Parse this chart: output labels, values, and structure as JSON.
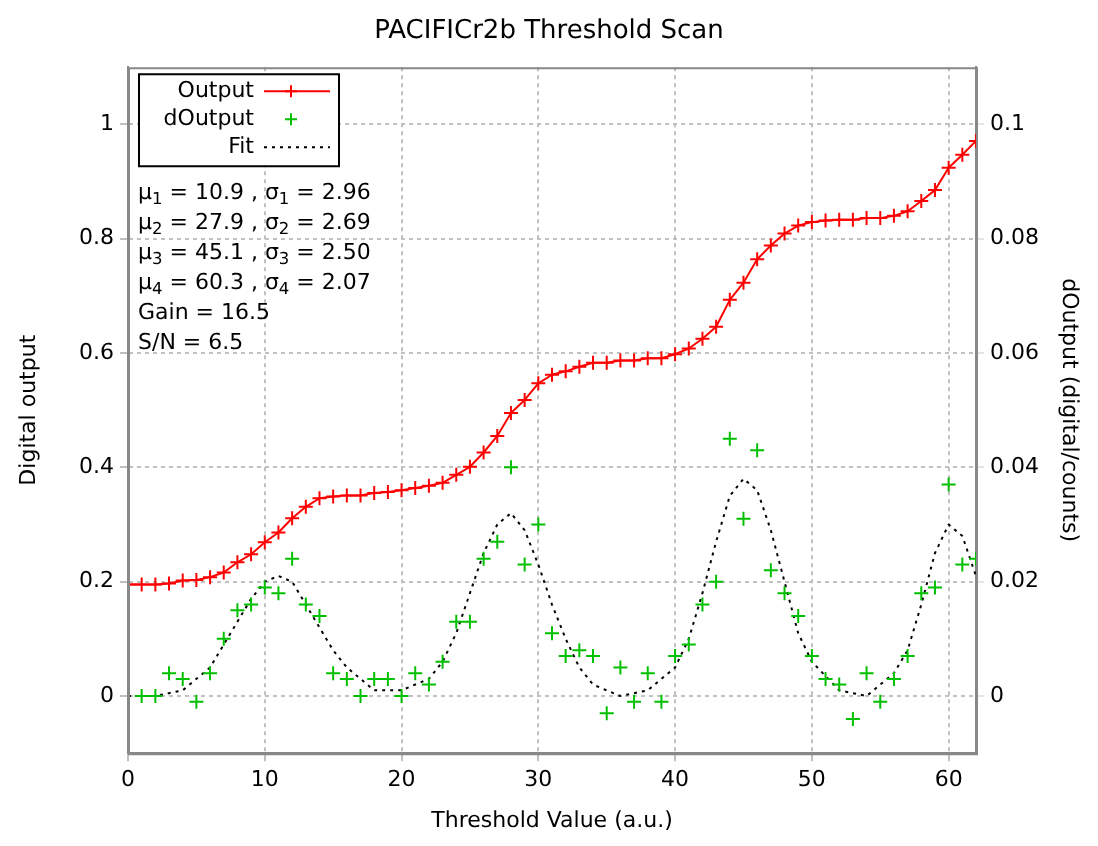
{
  "chart_data": {
    "type": "line",
    "title": "PACIFICr2b Threshold Scan",
    "xlabel": "Threshold Value (a.u.)",
    "ylabel": "Digital output",
    "y2label": "dOutput (digital/counts)",
    "xlim": [
      0,
      62
    ],
    "xticks": [
      0,
      10,
      20,
      30,
      40,
      50,
      60
    ],
    "ylim": [
      -0.1,
      1.1
    ],
    "yticks": [
      0,
      0.2,
      0.4,
      0.6,
      0.8,
      1
    ],
    "y2lim": [
      -0.01,
      0.11
    ],
    "y2ticks": [
      0,
      0.02,
      0.04,
      0.06,
      0.08,
      0.1
    ],
    "grid": true,
    "legend": "top left",
    "annotations": [
      "μ$_{1}$ = 10.9 , σ$_{1}$ = 2.96",
      "μ$_{2}$ = 27.9 , σ$_{2}$ = 2.69",
      "μ$_{3}$ = 45.1 , σ$_{3}$ = 2.50",
      "μ$_{4}$ = 60.3 , σ$_{4}$ = 2.07",
      "Gain = 16.5",
      "S/N = 6.5"
    ],
    "series": [
      {
        "name": "Output",
        "type": "line",
        "color": "#ff0000",
        "marker": "cross",
        "line_style": "solid",
        "x": [
          0,
          1,
          2,
          3,
          4,
          5,
          6,
          7,
          8,
          9,
          10,
          11,
          12,
          13,
          14,
          15,
          16,
          17,
          18,
          19,
          20,
          21,
          22,
          23,
          24,
          25,
          26,
          27,
          28,
          29,
          30,
          31,
          32,
          33,
          34,
          35,
          36,
          37,
          38,
          39,
          40,
          41,
          42,
          43,
          44,
          45,
          46,
          47,
          48,
          49,
          50,
          51,
          52,
          53,
          54,
          55,
          56,
          57,
          58,
          59,
          60,
          61,
          62
        ],
        "values": [
          0.195,
          0.195,
          0.195,
          0.197,
          0.202,
          0.203,
          0.208,
          0.216,
          0.234,
          0.248,
          0.269,
          0.286,
          0.311,
          0.331,
          0.346,
          0.349,
          0.351,
          0.351,
          0.355,
          0.357,
          0.36,
          0.364,
          0.368,
          0.373,
          0.387,
          0.401,
          0.426,
          0.455,
          0.495,
          0.518,
          0.547,
          0.562,
          0.568,
          0.576,
          0.583,
          0.583,
          0.587,
          0.587,
          0.591,
          0.591,
          0.598,
          0.608,
          0.625,
          0.646,
          0.693,
          0.723,
          0.764,
          0.788,
          0.809,
          0.823,
          0.829,
          0.832,
          0.833,
          0.833,
          0.836,
          0.836,
          0.84,
          0.848,
          0.866,
          0.885,
          0.924,
          0.947,
          0.971
        ]
      },
      {
        "name": "dOutput",
        "type": "scatter",
        "axis": "y2",
        "color": "#00c000",
        "marker": "cross",
        "x": [
          1,
          2,
          3,
          4,
          5,
          6,
          7,
          8,
          9,
          10,
          11,
          12,
          13,
          14,
          15,
          16,
          17,
          18,
          19,
          20,
          21,
          22,
          23,
          24,
          25,
          26,
          27,
          28,
          29,
          30,
          31,
          32,
          33,
          34,
          35,
          36,
          37,
          38,
          39,
          40,
          41,
          42,
          43,
          44,
          45,
          46,
          47,
          48,
          49,
          50,
          51,
          52,
          53,
          54,
          55,
          56,
          57,
          58,
          59,
          60,
          61,
          62
        ],
        "values": [
          0.0,
          0.0,
          0.004,
          0.003,
          -0.001,
          0.004,
          0.01,
          0.015,
          0.016,
          0.019,
          0.018,
          0.024,
          0.016,
          0.014,
          0.004,
          0.003,
          0.0,
          0.003,
          0.003,
          0.0,
          0.004,
          0.002,
          0.006,
          0.013,
          0.013,
          0.024,
          0.027,
          0.04,
          0.023,
          0.03,
          0.011,
          0.007,
          0.008,
          0.007,
          -0.003,
          0.005,
          -0.001,
          0.004,
          -0.001,
          0.007,
          0.009,
          0.016,
          0.02,
          0.045,
          0.031,
          0.043,
          0.022,
          0.018,
          0.014,
          0.007,
          0.003,
          0.002,
          -0.004,
          0.004,
          -0.001,
          0.003,
          0.007,
          0.018,
          0.019,
          0.037,
          0.023,
          0.024
        ]
      },
      {
        "name": "Fit",
        "type": "line",
        "axis": "y2",
        "color": "#000000",
        "marker": "none",
        "line_style": "dotted",
        "x": [
          0,
          2,
          4,
          6,
          7,
          8,
          9,
          10,
          11,
          12,
          13,
          14,
          15,
          16,
          18,
          20,
          22,
          23,
          24,
          25,
          26,
          27,
          28,
          29,
          30,
          31,
          32,
          33,
          34,
          36,
          38,
          40,
          41,
          42,
          43,
          44,
          45,
          46,
          47,
          48,
          49,
          50,
          52,
          54,
          56,
          57,
          58,
          59,
          60,
          61,
          62
        ],
        "values": [
          0,
          0,
          0.001,
          0.005,
          0.009,
          0.013,
          0.017,
          0.02,
          0.021,
          0.02,
          0.016,
          0.012,
          0.008,
          0.005,
          0.001,
          0.001,
          0.003,
          0.006,
          0.011,
          0.018,
          0.025,
          0.03,
          0.032,
          0.029,
          0.023,
          0.016,
          0.01,
          0.005,
          0.002,
          0,
          0.001,
          0.005,
          0.01,
          0.018,
          0.027,
          0.035,
          0.038,
          0.036,
          0.029,
          0.02,
          0.011,
          0.006,
          0.001,
          0,
          0.004,
          0.008,
          0.016,
          0.025,
          0.03,
          0.028,
          0.021
        ]
      }
    ]
  }
}
